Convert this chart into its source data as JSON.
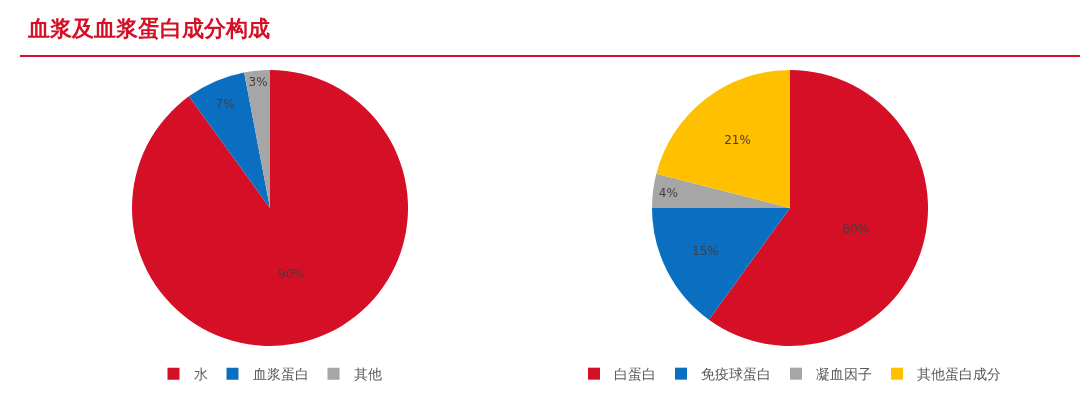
{
  "chart_data": [
    {
      "type": "pie",
      "title": "血浆及血浆蛋白成分构成",
      "categories": [
        "水",
        "血浆蛋白",
        "其他"
      ],
      "values": [
        90,
        7,
        3
      ],
      "value_labels": [
        "90%",
        "7%",
        "3%"
      ],
      "colors": [
        "#d50f25",
        "#0b6fc1",
        "#a6a6a6"
      ],
      "legend": "bottom"
    },
    {
      "type": "pie",
      "categories": [
        "白蛋白",
        "免疫球蛋白",
        "凝血因子",
        "其他蛋白成分"
      ],
      "values": [
        60,
        15,
        4,
        21
      ],
      "value_labels": [
        "60%",
        "15%",
        "4%",
        "21%"
      ],
      "colors": [
        "#d50f25",
        "#0b6fc1",
        "#a6a6a6",
        "#ffc000"
      ],
      "legend": "bottom"
    }
  ]
}
